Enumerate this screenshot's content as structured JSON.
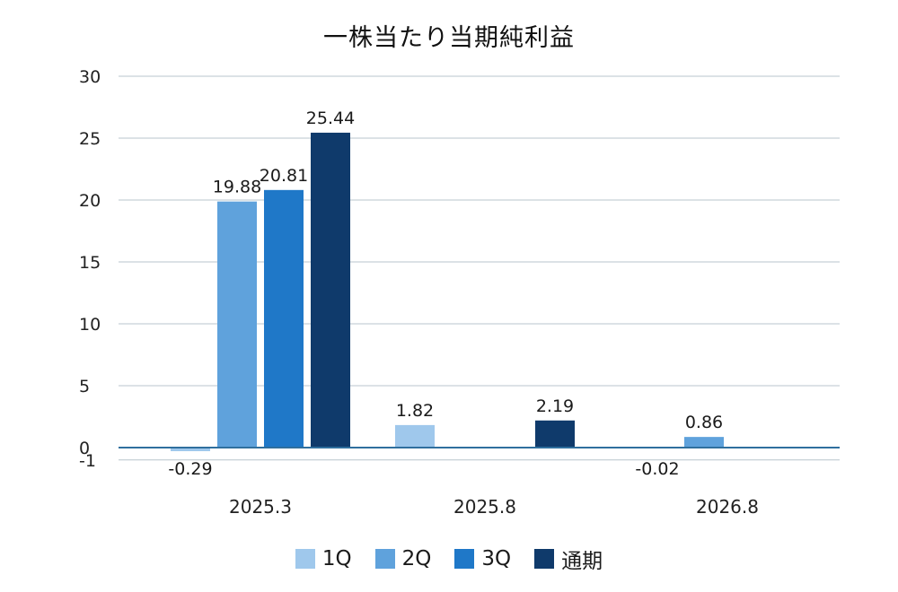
{
  "chart_data": {
    "type": "bar",
    "title": "一株当たり当期純利益",
    "categories": [
      "2025.3",
      "2025.8",
      "2026.8"
    ],
    "ylim": [
      -1,
      30
    ],
    "yticks": [
      30,
      25,
      20,
      15,
      10,
      5,
      0,
      -1
    ],
    "grid": true,
    "legend_position": "bottom",
    "series": [
      {
        "name": "1Q",
        "color": "#9fc8ec",
        "values": [
          -0.29,
          1.82,
          -0.02
        ],
        "labels": [
          "-0.29",
          "1.82",
          "-0.02"
        ]
      },
      {
        "name": "2Q",
        "color": "#5fa2dc",
        "values": [
          19.88,
          null,
          0.86
        ],
        "labels": [
          "19.88",
          "",
          "0.86"
        ]
      },
      {
        "name": "3Q",
        "color": "#1f78c8",
        "values": [
          20.81,
          null,
          null
        ],
        "labels": [
          "20.81",
          "",
          ""
        ]
      },
      {
        "name": "通期",
        "color": "#0f3a6b",
        "values": [
          25.44,
          2.19,
          null
        ],
        "labels": [
          "25.44",
          "2.19",
          ""
        ]
      }
    ]
  }
}
